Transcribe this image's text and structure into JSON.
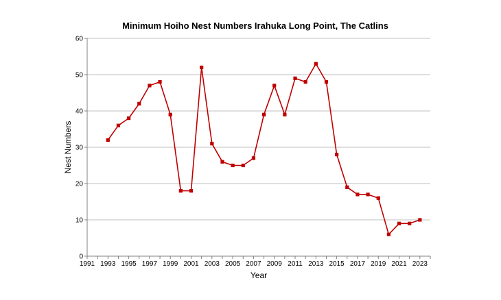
{
  "chart_data": {
    "type": "line",
    "title": "Minimum Hoiho Nest Numbers Irahuka Long Point, The Catlins",
    "xlabel": "Year",
    "ylabel": "Nest Numbers",
    "xlim": [
      1991,
      2024
    ],
    "ylim": [
      0,
      60
    ],
    "x_ticks": [
      1991,
      1993,
      1995,
      1997,
      1999,
      2001,
      2003,
      2005,
      2007,
      2009,
      2011,
      2013,
      2015,
      2017,
      2019,
      2021,
      2023
    ],
    "y_ticks": [
      0,
      10,
      20,
      30,
      40,
      50,
      60
    ],
    "grid": "horizontal",
    "legend": "none",
    "series": [
      {
        "color": "#c00000",
        "points": [
          {
            "x": 1993,
            "y": 32
          },
          {
            "x": 1994,
            "y": 36
          },
          {
            "x": 1995,
            "y": 38
          },
          {
            "x": 1996,
            "y": 42
          },
          {
            "x": 1997,
            "y": 47
          },
          {
            "x": 1998,
            "y": 48
          },
          {
            "x": 1999,
            "y": 39
          },
          {
            "x": 2000,
            "y": 18
          },
          {
            "x": 2001,
            "y": 18
          },
          {
            "x": 2002,
            "y": 52
          },
          {
            "x": 2003,
            "y": 31
          },
          {
            "x": 2004,
            "y": 26
          },
          {
            "x": 2005,
            "y": 25
          },
          {
            "x": 2006,
            "y": 25
          },
          {
            "x": 2007,
            "y": 27
          },
          {
            "x": 2008,
            "y": 39
          },
          {
            "x": 2009,
            "y": 47
          },
          {
            "x": 2010,
            "y": 39
          },
          {
            "x": 2011,
            "y": 49
          },
          {
            "x": 2012,
            "y": 48
          },
          {
            "x": 2013,
            "y": 53
          },
          {
            "x": 2014,
            "y": 48
          },
          {
            "x": 2015,
            "y": 28
          },
          {
            "x": 2016,
            "y": 19
          },
          {
            "x": 2017,
            "y": 17
          },
          {
            "x": 2018,
            "y": 17
          },
          {
            "x": 2019,
            "y": 16
          },
          {
            "x": 2020,
            "y": 6
          },
          {
            "x": 2021,
            "y": 9
          },
          {
            "x": 2022,
            "y": 9
          },
          {
            "x": 2023,
            "y": 10
          }
        ]
      }
    ]
  }
}
